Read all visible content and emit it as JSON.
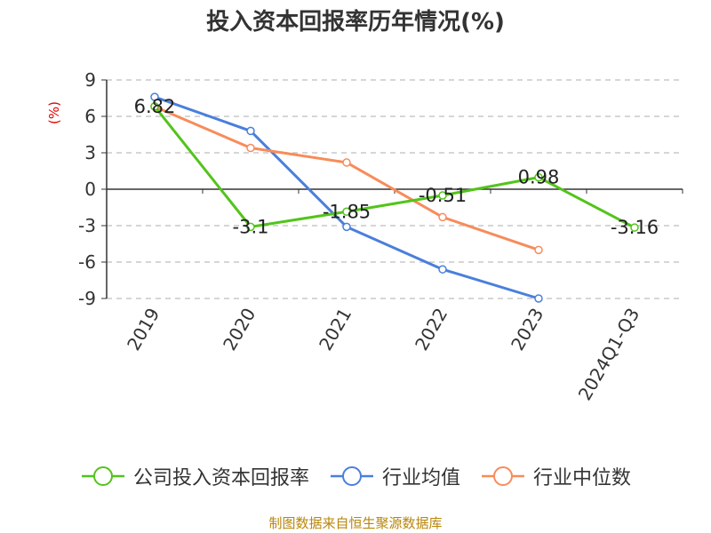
{
  "chart_data": {
    "type": "line",
    "title": "投入资本回报率历年情况(%)",
    "ylabel": "(%)",
    "categories": [
      "2019",
      "2020",
      "2021",
      "2022",
      "2023",
      "2024Q1-Q3"
    ],
    "yticks": [
      9,
      6,
      3,
      0,
      -3,
      -6,
      -9
    ],
    "ylim": [
      -9,
      9
    ],
    "grid": true,
    "legend_position": "bottom",
    "series": [
      {
        "name": "公司投入资本回报率",
        "color": "#52c41a",
        "values": [
          6.82,
          -3.1,
          -1.85,
          -0.51,
          0.98,
          -3.16
        ],
        "labels": [
          "6.82",
          "-3.1",
          "-1.85",
          "-0.51",
          "0.98",
          "-3.16"
        ]
      },
      {
        "name": "行业均值",
        "color": "#4a7fdc",
        "values": [
          7.6,
          4.8,
          -3.1,
          -6.6,
          -9.0,
          null
        ]
      },
      {
        "name": "行业中位数",
        "color": "#f78c5a",
        "values": [
          6.8,
          3.4,
          2.2,
          -2.3,
          -5.0,
          null
        ]
      }
    ]
  },
  "source": "制图数据来自恒生聚源数据库"
}
